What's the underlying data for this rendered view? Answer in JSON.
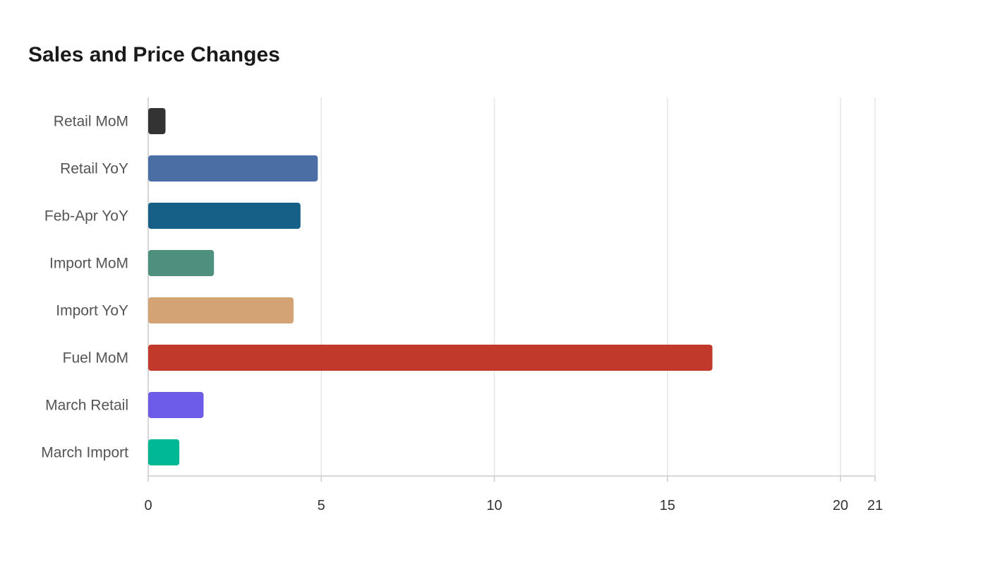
{
  "chart": {
    "title": "Sales and Price Changes"
  },
  "chart_data": {
    "type": "bar",
    "orientation": "horizontal",
    "title": "Sales and Price Changes",
    "xlabel": "",
    "ylabel": "",
    "categories": [
      "Retail MoM",
      "Retail YoY",
      "Feb-Apr YoY",
      "Import MoM",
      "Import YoY",
      "Fuel MoM",
      "March Retail",
      "March Import"
    ],
    "values": [
      0.5,
      4.9,
      4.4,
      1.9,
      4.2,
      16.3,
      1.6,
      0.9
    ],
    "colors": [
      "#333333",
      "#4a6fa5",
      "#166088",
      "#4f8f7e",
      "#d4a373",
      "#c0392b",
      "#6c5ce7",
      "#00b894"
    ],
    "xlim": [
      0,
      21
    ],
    "xticks": [
      0,
      5,
      10,
      15,
      20,
      21
    ],
    "grid": true,
    "legend": "none"
  }
}
